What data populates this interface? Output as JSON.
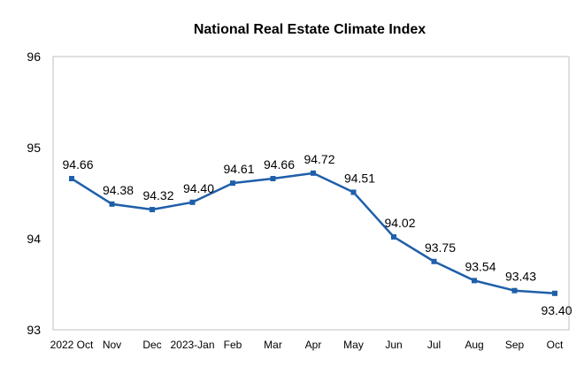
{
  "chart_data": {
    "type": "line",
    "title": "National Real Estate Climate Index",
    "xlabel": "",
    "ylabel": "",
    "categories": [
      "2022 Oct",
      "Nov",
      "Dec",
      "2023-Jan",
      "Feb",
      "Mar",
      "Apr",
      "May",
      "Jun",
      "Jul",
      "Aug",
      "Sep",
      "Oct"
    ],
    "series": [
      {
        "values": [
          94.66,
          94.38,
          94.32,
          94.4,
          94.61,
          94.66,
          94.72,
          94.51,
          94.02,
          93.75,
          93.54,
          93.43,
          93.4
        ]
      }
    ],
    "data_labels": [
      "94.66",
      "94.38",
      "94.32",
      "94.40",
      "94.61",
      "94.66",
      "94.72",
      "94.51",
      "94.02",
      "93.75",
      "93.54",
      "93.43",
      "93.40"
    ],
    "y_ticks": [
      "93",
      "94",
      "95",
      "96"
    ],
    "ylim": [
      93,
      96
    ],
    "grid": false,
    "line_color": "#1f5faa",
    "axis_color": "#bfbfbf"
  }
}
